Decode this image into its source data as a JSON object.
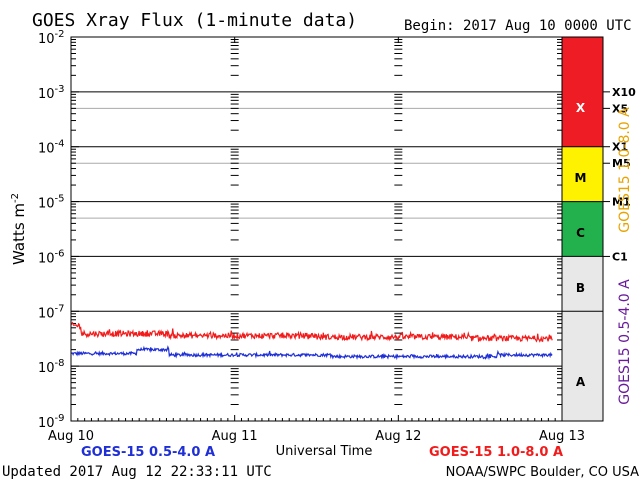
{
  "chart_data": {
    "type": "line",
    "title": "GOES Xray Flux (1-minute data)",
    "begin_label": "Begin:  2017 Aug 10 0000 UTC",
    "ylabel_main": "Watts m",
    "ylabel_sup": "-2",
    "xlabel": "Universal Time",
    "y_scale": "log",
    "ylim": [
      1e-09,
      0.01
    ],
    "y_ticks": [
      {
        "exp": -2,
        "label": "-2"
      },
      {
        "exp": -3,
        "label": "-3"
      },
      {
        "exp": -4,
        "label": "-4"
      },
      {
        "exp": -5,
        "label": "-5"
      },
      {
        "exp": -6,
        "label": "-6"
      },
      {
        "exp": -7,
        "label": "-7"
      },
      {
        "exp": -8,
        "label": "-8"
      },
      {
        "exp": -9,
        "label": "-9"
      }
    ],
    "y_tick_base": "10",
    "xlim_days": [
      0,
      3
    ],
    "x_ticks": [
      {
        "day": 0,
        "label": "Aug 10"
      },
      {
        "day": 1,
        "label": "Aug 11"
      },
      {
        "day": 2,
        "label": "Aug 12"
      },
      {
        "day": 3,
        "label": "Aug 13"
      }
    ],
    "data_end_day": 2.94,
    "series": [
      {
        "name": "GOES-15 0.5-4.0 A",
        "color": "#1f2fd6",
        "baseline": 1.6e-08,
        "segments": [
          {
            "from": 0.0,
            "to": 0.4,
            "level": 1.7e-08
          },
          {
            "from": 0.4,
            "to": 0.6,
            "level": 2e-08
          },
          {
            "from": 0.6,
            "to": 1.6,
            "level": 1.6e-08
          },
          {
            "from": 1.6,
            "to": 2.6,
            "level": 1.5e-08
          },
          {
            "from": 2.6,
            "to": 2.94,
            "level": 1.6e-08
          }
        ]
      },
      {
        "name": "GOES-15 1.0-8.0 A",
        "color": "#f21b1b",
        "baseline": 3.6e-08,
        "segments": [
          {
            "from": 0.0,
            "to": 0.06,
            "level": 5.5e-08
          },
          {
            "from": 0.06,
            "to": 0.6,
            "level": 3.9e-08
          },
          {
            "from": 0.6,
            "to": 1.5,
            "level": 3.6e-08
          },
          {
            "from": 1.5,
            "to": 2.4,
            "level": 3.4e-08
          },
          {
            "from": 2.4,
            "to": 2.94,
            "level": 3.2e-08
          }
        ]
      }
    ],
    "threshold_lines": [
      0.001,
      0.0005,
      0.0001,
      5e-05,
      1e-05,
      5e-06
    ],
    "classes": [
      {
        "label": "X",
        "from_exp": -4,
        "to_exp": -2,
        "color": "#ee1c24"
      },
      {
        "label": "M",
        "from_exp": -5,
        "to_exp": -4,
        "color": "#fff200"
      },
      {
        "label": "C",
        "from_exp": -6,
        "to_exp": -5,
        "color": "#22b14c"
      },
      {
        "label": "B",
        "from_exp": -7,
        "to_exp": -6,
        "color": "#e8e8e8"
      },
      {
        "label": "A",
        "from_exp": -9,
        "to_exp": -7,
        "color": "#e8e8e8"
      }
    ],
    "class_markers": [
      {
        "label": "X10",
        "value": 0.001
      },
      {
        "label": "X5",
        "value": 0.0005
      },
      {
        "label": "X1",
        "value": 0.0001
      },
      {
        "label": "M5",
        "value": 5e-05
      },
      {
        "label": "M1",
        "value": 1e-05
      },
      {
        "label": "C1",
        "value": 1e-06
      }
    ],
    "right_axis_label_long": "GOES15 1.0-8.0 A",
    "right_axis_label_short": "GOES15 0.5-4.0 A",
    "right_axis_label_long_color": "#e8a300",
    "right_axis_label_short_color": "#6a1b9a"
  },
  "footer": {
    "updated": "Updated 2017 Aug 12 22:33:11 UTC",
    "source": "NOAA/SWPC Boulder, CO USA"
  }
}
